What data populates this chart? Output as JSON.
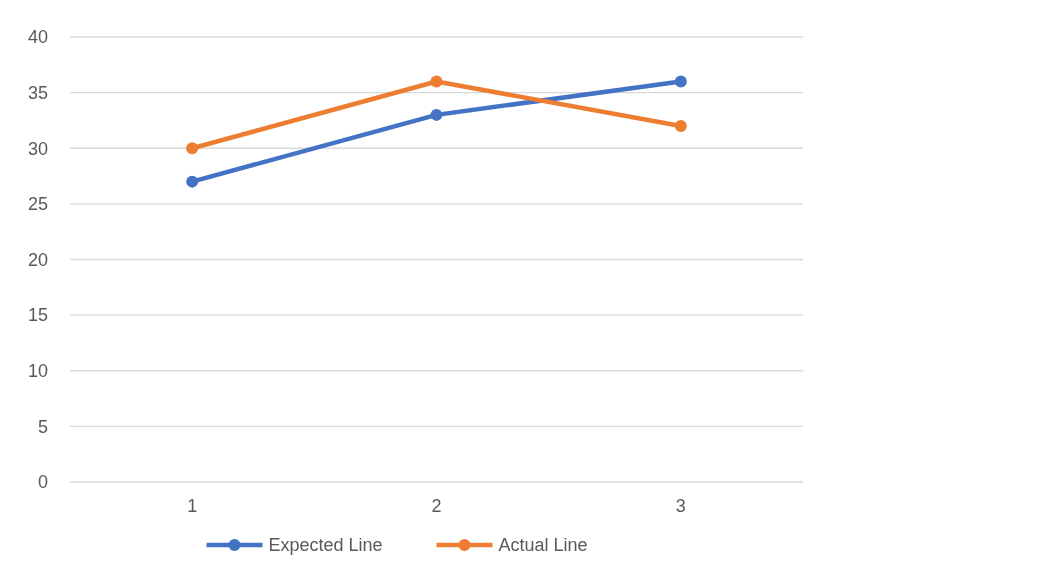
{
  "chart_data": {
    "type": "line",
    "categories": [
      "1",
      "2",
      "3"
    ],
    "series": [
      {
        "name": "Expected Line",
        "color": "#4472c4",
        "values": [
          27,
          33,
          36
        ]
      },
      {
        "name": "Actual Line",
        "color": "#ed7d31",
        "values": [
          30,
          36,
          32
        ]
      }
    ],
    "ylim": [
      0,
      40
    ],
    "yticks": [
      0,
      5,
      10,
      15,
      20,
      25,
      30,
      35,
      40
    ],
    "grid": "y",
    "legend": "bottom",
    "marker": "circle",
    "line_style": "solid"
  }
}
